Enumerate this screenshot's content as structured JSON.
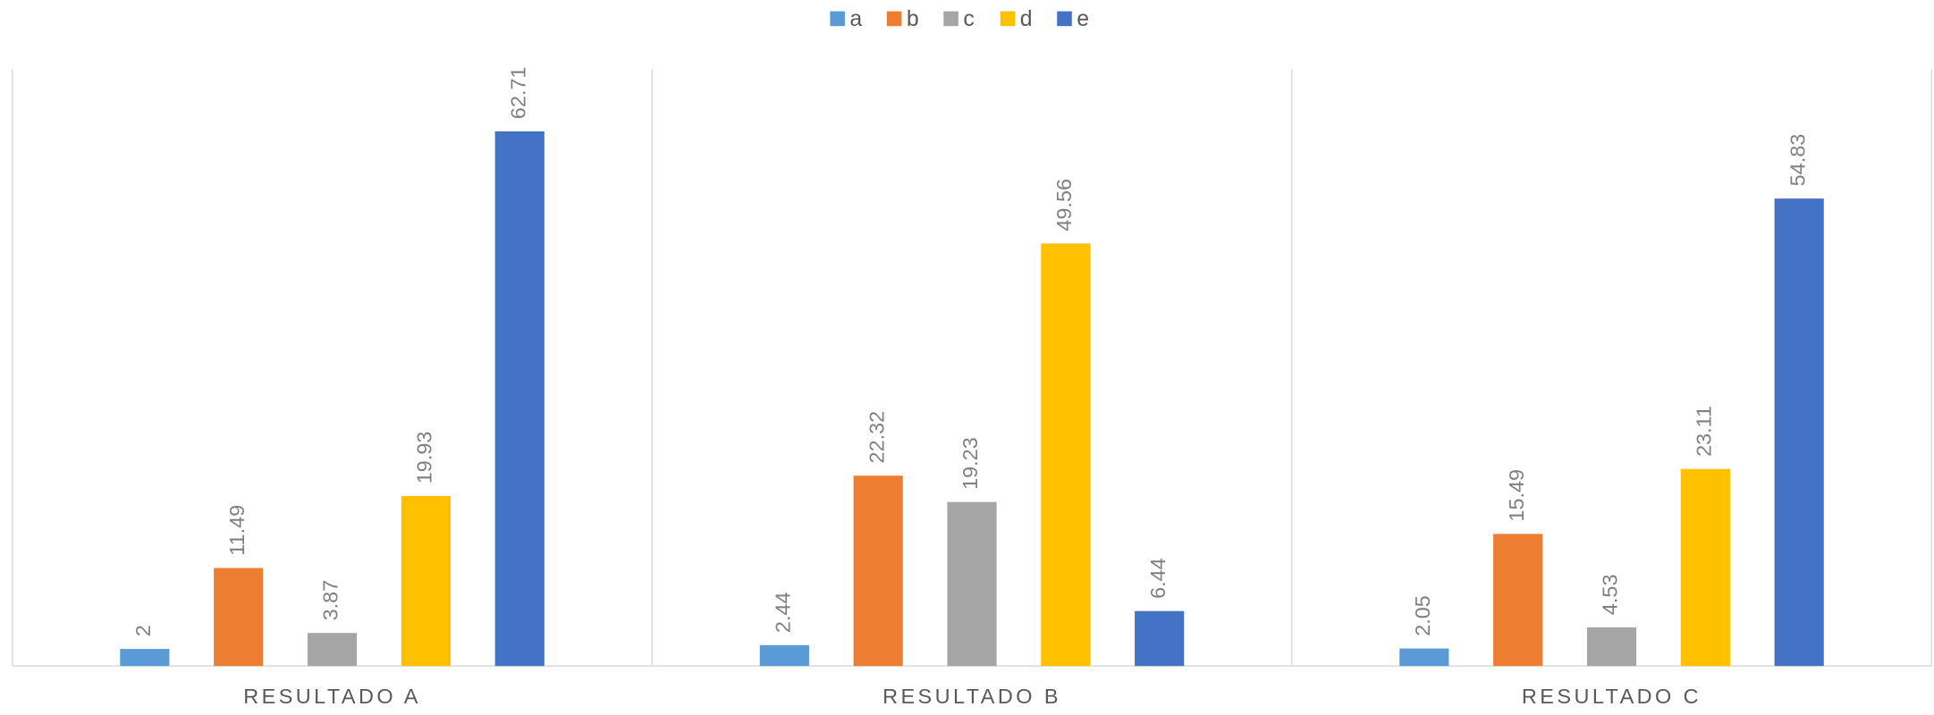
{
  "chart_data": {
    "type": "bar",
    "categories": [
      "RESULTADO A",
      "RESULTADO B",
      "RESULTADO C"
    ],
    "series": [
      {
        "name": "a",
        "color": "#5b9bd5",
        "values": [
          2,
          2.44,
          2.05
        ]
      },
      {
        "name": "b",
        "color": "#ed7d31",
        "values": [
          11.49,
          22.32,
          15.49
        ]
      },
      {
        "name": "c",
        "color": "#a5a5a5",
        "values": [
          3.87,
          19.23,
          4.53
        ]
      },
      {
        "name": "d",
        "color": "#ffc000",
        "values": [
          19.93,
          49.56,
          23.11
        ]
      },
      {
        "name": "e",
        "color": "#4472c4",
        "values": [
          62.71,
          6.44,
          54.83
        ]
      }
    ],
    "ylim": [
      0,
      70
    ],
    "legend": "top",
    "data_labels": true
  }
}
